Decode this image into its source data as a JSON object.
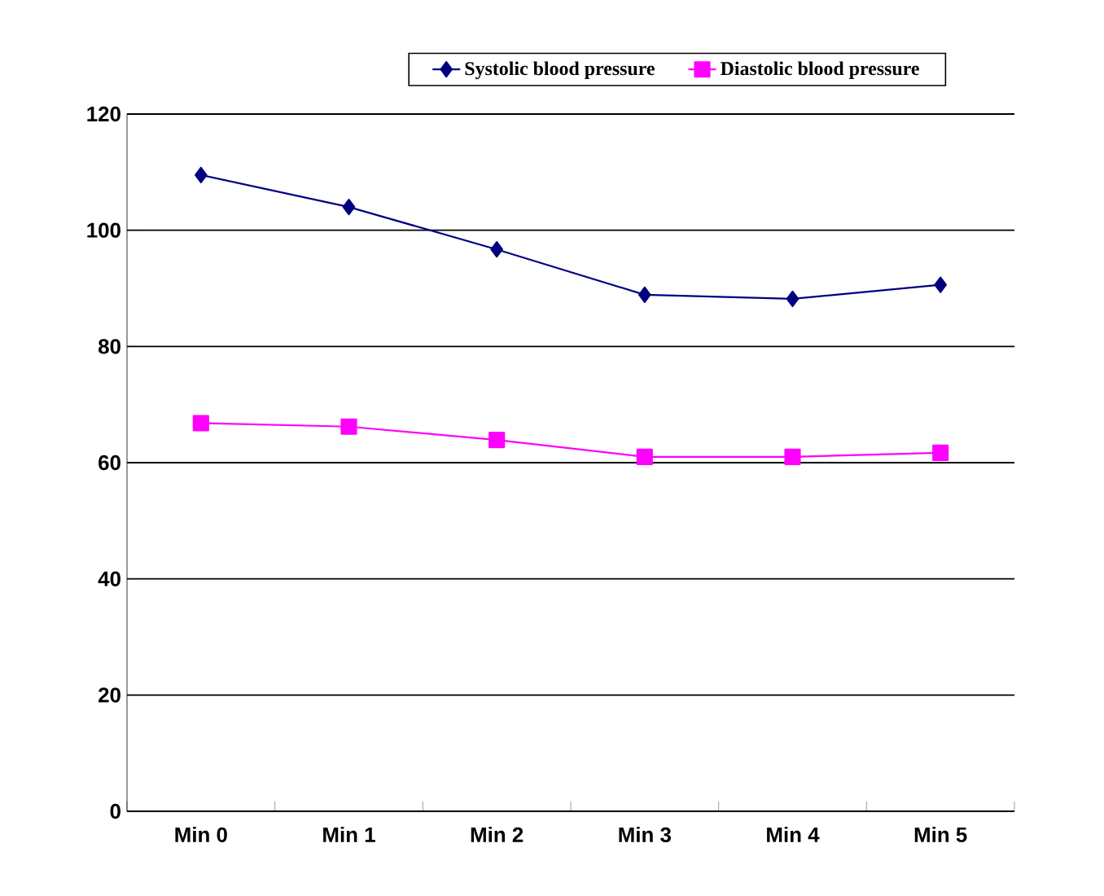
{
  "chart_data": {
    "type": "line",
    "categories": [
      "Min 0",
      "Min 1",
      "Min 2",
      "Min 3",
      "Min 4",
      "Min 5"
    ],
    "series": [
      {
        "name": "Systolic blood pressure",
        "color": "#000080",
        "marker": "diamond",
        "values": [
          109.5,
          104.0,
          96.7,
          88.9,
          88.2,
          90.6
        ]
      },
      {
        "name": "Diastolic blood pressure",
        "color": "#ff00ff",
        "marker": "square",
        "values": [
          66.8,
          66.2,
          63.9,
          61.0,
          61.0,
          61.7
        ]
      }
    ],
    "ylim": [
      0,
      120
    ],
    "yticks": [
      0,
      20,
      40,
      60,
      80,
      100,
      120
    ],
    "grid": "y",
    "legend": "top"
  }
}
